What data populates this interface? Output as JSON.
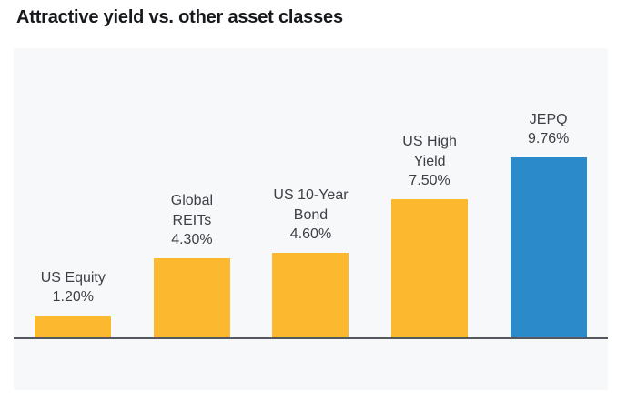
{
  "header": {
    "title": "Attractive yield vs. other asset classes"
  },
  "chart_data": {
    "type": "bar",
    "title": "Attractive yield vs. other asset classes",
    "categories": [
      "US Equity",
      "Global REITs",
      "US 10-Year Bond",
      "US High Yield",
      "JEPQ"
    ],
    "values": [
      1.2,
      4.3,
      4.6,
      7.5,
      9.76
    ],
    "value_labels": [
      "1.20%",
      "4.30%",
      "4.60%",
      "7.50%",
      "9.76%"
    ],
    "label_lines": [
      [
        "US Equity"
      ],
      [
        "Global",
        "REITs"
      ],
      [
        "US 10-Year",
        "Bond"
      ],
      [
        "US High",
        "Yield"
      ],
      [
        "JEPQ"
      ]
    ],
    "bar_colors": [
      "#FCB92F",
      "#FCB92F",
      "#FCB92F",
      "#FCB92F",
      "#2A8ACA"
    ],
    "highlight_index": 4,
    "xlabel": "",
    "ylabel": "",
    "ylim": [
      0,
      9.76
    ],
    "grid": false,
    "legend": false,
    "axis_labels_shown": false,
    "colors": {
      "default_bar": "#FCB92F",
      "highlight_bar": "#2A8ACA",
      "baseline": "#55585E",
      "panel_background": "#F7F8FA",
      "label_text": "#3C3F45",
      "title_text": "#17191C"
    }
  }
}
